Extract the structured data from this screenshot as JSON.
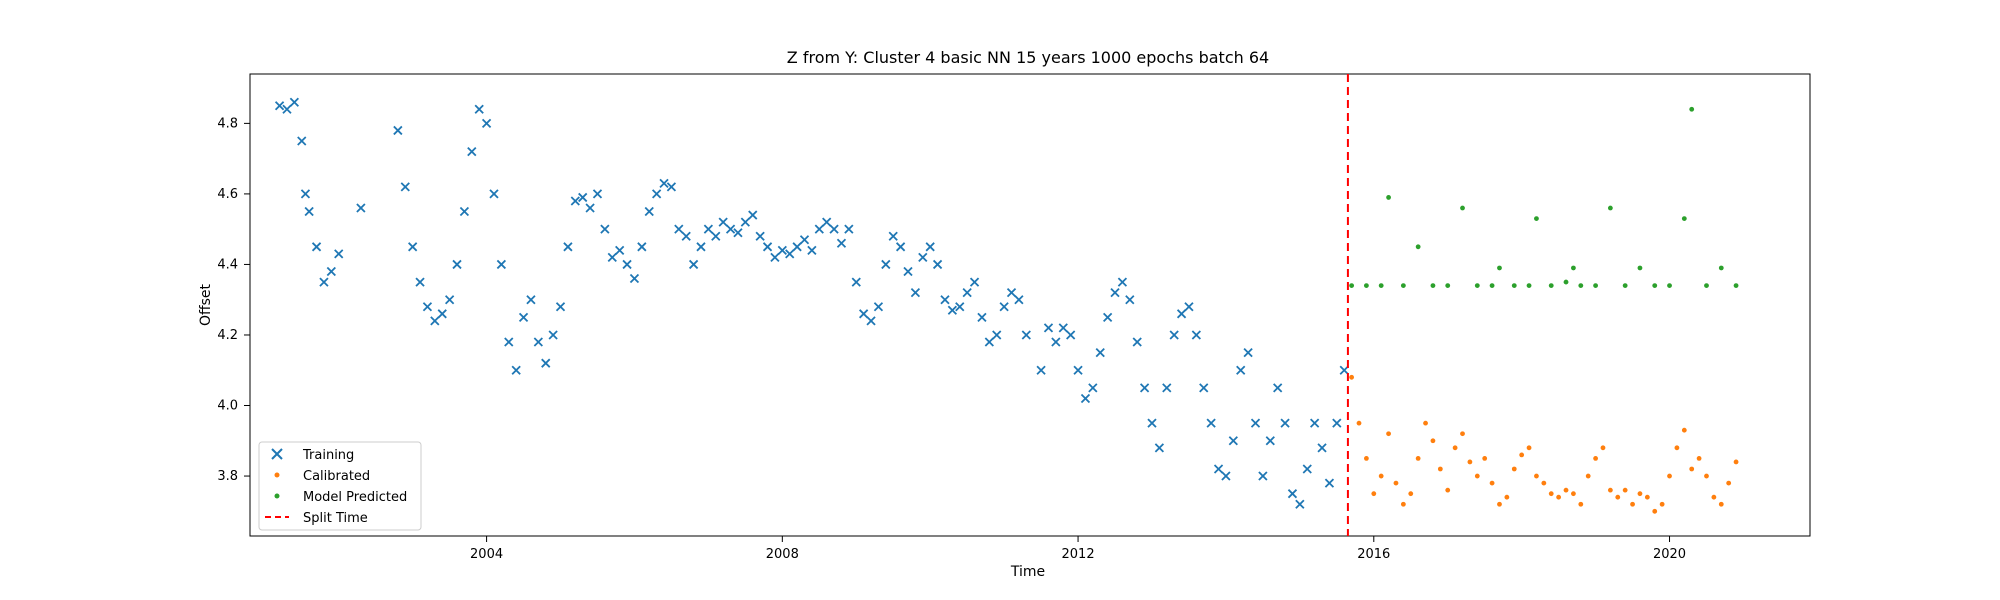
{
  "chart_data": {
    "type": "scatter",
    "title": "Z from Y: Cluster 4 basic NN 15 years 1000 epochs batch 64",
    "xlabel": "Time",
    "ylabel": "Offset",
    "xlim": [
      2000.8,
      2021.9
    ],
    "ylim": [
      3.63,
      4.94
    ],
    "x_ticks": [
      2004,
      2008,
      2012,
      2016,
      2020
    ],
    "x_tick_labels": [
      "2004",
      "2008",
      "2012",
      "2016",
      "2020"
    ],
    "y_ticks": [
      3.8,
      4.0,
      4.2,
      4.4,
      4.6,
      4.8
    ],
    "y_tick_labels": [
      "3.8",
      "4.0",
      "4.2",
      "4.4",
      "4.6",
      "4.8"
    ],
    "grid": false,
    "legend_position": "lower-left",
    "split_time": 2015.65,
    "series": [
      {
        "name": "Training",
        "marker": "x",
        "color": "#1f77b4",
        "points": [
          [
            2001.2,
            4.85
          ],
          [
            2001.3,
            4.84
          ],
          [
            2001.4,
            4.86
          ],
          [
            2001.5,
            4.75
          ],
          [
            2001.55,
            4.6
          ],
          [
            2001.6,
            4.55
          ],
          [
            2001.7,
            4.45
          ],
          [
            2001.8,
            4.35
          ],
          [
            2001.9,
            4.38
          ],
          [
            2002.0,
            4.43
          ],
          [
            2002.3,
            4.56
          ],
          [
            2002.8,
            4.78
          ],
          [
            2002.9,
            4.62
          ],
          [
            2003.0,
            4.45
          ],
          [
            2003.1,
            4.35
          ],
          [
            2003.2,
            4.28
          ],
          [
            2003.3,
            4.24
          ],
          [
            2003.4,
            4.26
          ],
          [
            2003.5,
            4.3
          ],
          [
            2003.6,
            4.4
          ],
          [
            2003.7,
            4.55
          ],
          [
            2003.8,
            4.72
          ],
          [
            2003.9,
            4.84
          ],
          [
            2004.0,
            4.8
          ],
          [
            2004.1,
            4.6
          ],
          [
            2004.2,
            4.4
          ],
          [
            2004.3,
            4.18
          ],
          [
            2004.4,
            4.1
          ],
          [
            2004.5,
            4.25
          ],
          [
            2004.6,
            4.3
          ],
          [
            2004.7,
            4.18
          ],
          [
            2004.8,
            4.12
          ],
          [
            2004.9,
            4.2
          ],
          [
            2005.0,
            4.28
          ],
          [
            2005.1,
            4.45
          ],
          [
            2005.2,
            4.58
          ],
          [
            2005.3,
            4.59
          ],
          [
            2005.4,
            4.56
          ],
          [
            2005.5,
            4.6
          ],
          [
            2005.6,
            4.5
          ],
          [
            2005.7,
            4.42
          ],
          [
            2005.8,
            4.44
          ],
          [
            2005.9,
            4.4
          ],
          [
            2006.0,
            4.36
          ],
          [
            2006.1,
            4.45
          ],
          [
            2006.2,
            4.55
          ],
          [
            2006.3,
            4.6
          ],
          [
            2006.4,
            4.63
          ],
          [
            2006.5,
            4.62
          ],
          [
            2006.6,
            4.5
          ],
          [
            2006.7,
            4.48
          ],
          [
            2006.8,
            4.4
          ],
          [
            2006.9,
            4.45
          ],
          [
            2007.0,
            4.5
          ],
          [
            2007.1,
            4.48
          ],
          [
            2007.2,
            4.52
          ],
          [
            2007.3,
            4.5
          ],
          [
            2007.4,
            4.49
          ],
          [
            2007.5,
            4.52
          ],
          [
            2007.6,
            4.54
          ],
          [
            2007.7,
            4.48
          ],
          [
            2007.8,
            4.45
          ],
          [
            2007.9,
            4.42
          ],
          [
            2008.0,
            4.44
          ],
          [
            2008.1,
            4.43
          ],
          [
            2008.2,
            4.45
          ],
          [
            2008.3,
            4.47
          ],
          [
            2008.4,
            4.44
          ],
          [
            2008.5,
            4.5
          ],
          [
            2008.6,
            4.52
          ],
          [
            2008.7,
            4.5
          ],
          [
            2008.8,
            4.46
          ],
          [
            2008.9,
            4.5
          ],
          [
            2009.0,
            4.35
          ],
          [
            2009.1,
            4.26
          ],
          [
            2009.2,
            4.24
          ],
          [
            2009.3,
            4.28
          ],
          [
            2009.4,
            4.4
          ],
          [
            2009.5,
            4.48
          ],
          [
            2009.6,
            4.45
          ],
          [
            2009.7,
            4.38
          ],
          [
            2009.8,
            4.32
          ],
          [
            2009.9,
            4.42
          ],
          [
            2010.0,
            4.45
          ],
          [
            2010.1,
            4.4
          ],
          [
            2010.2,
            4.3
          ],
          [
            2010.3,
            4.27
          ],
          [
            2010.4,
            4.28
          ],
          [
            2010.5,
            4.32
          ],
          [
            2010.6,
            4.35
          ],
          [
            2010.7,
            4.25
          ],
          [
            2010.8,
            4.18
          ],
          [
            2010.9,
            4.2
          ],
          [
            2011.0,
            4.28
          ],
          [
            2011.1,
            4.32
          ],
          [
            2011.2,
            4.3
          ],
          [
            2011.3,
            4.2
          ],
          [
            2011.5,
            4.1
          ],
          [
            2011.6,
            4.22
          ],
          [
            2011.7,
            4.18
          ],
          [
            2011.8,
            4.22
          ],
          [
            2011.9,
            4.2
          ],
          [
            2012.0,
            4.1
          ],
          [
            2012.1,
            4.02
          ],
          [
            2012.2,
            4.05
          ],
          [
            2012.3,
            4.15
          ],
          [
            2012.4,
            4.25
          ],
          [
            2012.5,
            4.32
          ],
          [
            2012.6,
            4.35
          ],
          [
            2012.7,
            4.3
          ],
          [
            2012.8,
            4.18
          ],
          [
            2012.9,
            4.05
          ],
          [
            2013.0,
            3.95
          ],
          [
            2013.1,
            3.88
          ],
          [
            2013.2,
            4.05
          ],
          [
            2013.3,
            4.2
          ],
          [
            2013.4,
            4.26
          ],
          [
            2013.5,
            4.28
          ],
          [
            2013.6,
            4.2
          ],
          [
            2013.7,
            4.05
          ],
          [
            2013.8,
            3.95
          ],
          [
            2013.9,
            3.82
          ],
          [
            2014.0,
            3.8
          ],
          [
            2014.1,
            3.9
          ],
          [
            2014.2,
            4.1
          ],
          [
            2014.3,
            4.15
          ],
          [
            2014.4,
            3.95
          ],
          [
            2014.5,
            3.8
          ],
          [
            2014.6,
            3.9
          ],
          [
            2014.7,
            4.05
          ],
          [
            2014.8,
            3.95
          ],
          [
            2014.9,
            3.75
          ],
          [
            2015.0,
            3.72
          ],
          [
            2015.1,
            3.82
          ],
          [
            2015.2,
            3.95
          ],
          [
            2015.3,
            3.88
          ],
          [
            2015.4,
            3.78
          ],
          [
            2015.5,
            3.95
          ],
          [
            2015.6,
            4.1
          ]
        ]
      },
      {
        "name": "Calibrated",
        "marker": "dot",
        "color": "#ff7f0e",
        "points": [
          [
            2015.7,
            4.08
          ],
          [
            2015.8,
            3.95
          ],
          [
            2015.9,
            3.85
          ],
          [
            2016.0,
            3.75
          ],
          [
            2016.1,
            3.8
          ],
          [
            2016.2,
            3.92
          ],
          [
            2016.3,
            3.78
          ],
          [
            2016.4,
            3.72
          ],
          [
            2016.5,
            3.75
          ],
          [
            2016.6,
            3.85
          ],
          [
            2016.7,
            3.95
          ],
          [
            2016.8,
            3.9
          ],
          [
            2016.9,
            3.82
          ],
          [
            2017.0,
            3.76
          ],
          [
            2017.1,
            3.88
          ],
          [
            2017.2,
            3.92
          ],
          [
            2017.3,
            3.84
          ],
          [
            2017.4,
            3.8
          ],
          [
            2017.5,
            3.85
          ],
          [
            2017.6,
            3.78
          ],
          [
            2017.7,
            3.72
          ],
          [
            2017.8,
            3.74
          ],
          [
            2017.9,
            3.82
          ],
          [
            2018.0,
            3.86
          ],
          [
            2018.1,
            3.88
          ],
          [
            2018.2,
            3.8
          ],
          [
            2018.3,
            3.78
          ],
          [
            2018.4,
            3.75
          ],
          [
            2018.5,
            3.74
          ],
          [
            2018.6,
            3.76
          ],
          [
            2018.7,
            3.75
          ],
          [
            2018.8,
            3.72
          ],
          [
            2018.9,
            3.8
          ],
          [
            2019.0,
            3.85
          ],
          [
            2019.1,
            3.88
          ],
          [
            2019.2,
            3.76
          ],
          [
            2019.3,
            3.74
          ],
          [
            2019.4,
            3.76
          ],
          [
            2019.5,
            3.72
          ],
          [
            2019.6,
            3.75
          ],
          [
            2019.7,
            3.74
          ],
          [
            2019.8,
            3.7
          ],
          [
            2019.9,
            3.72
          ],
          [
            2020.0,
            3.8
          ],
          [
            2020.1,
            3.88
          ],
          [
            2020.2,
            3.93
          ],
          [
            2020.3,
            3.82
          ],
          [
            2020.4,
            3.85
          ],
          [
            2020.5,
            3.8
          ],
          [
            2020.6,
            3.74
          ],
          [
            2020.7,
            3.72
          ],
          [
            2020.8,
            3.78
          ],
          [
            2020.9,
            3.84
          ]
        ]
      },
      {
        "name": "Model Predicted",
        "marker": "dot",
        "color": "#2ca02c",
        "points": [
          [
            2015.7,
            4.34
          ],
          [
            2015.9,
            4.34
          ],
          [
            2016.1,
            4.34
          ],
          [
            2016.2,
            4.59
          ],
          [
            2016.4,
            4.34
          ],
          [
            2016.6,
            4.45
          ],
          [
            2016.8,
            4.34
          ],
          [
            2017.0,
            4.34
          ],
          [
            2017.2,
            4.56
          ],
          [
            2017.4,
            4.34
          ],
          [
            2017.6,
            4.34
          ],
          [
            2017.7,
            4.39
          ],
          [
            2017.9,
            4.34
          ],
          [
            2018.1,
            4.34
          ],
          [
            2018.2,
            4.53
          ],
          [
            2018.4,
            4.34
          ],
          [
            2018.6,
            4.35
          ],
          [
            2018.7,
            4.39
          ],
          [
            2018.8,
            4.34
          ],
          [
            2019.0,
            4.34
          ],
          [
            2019.2,
            4.56
          ],
          [
            2019.4,
            4.34
          ],
          [
            2019.6,
            4.39
          ],
          [
            2019.8,
            4.34
          ],
          [
            2020.0,
            4.34
          ],
          [
            2020.2,
            4.53
          ],
          [
            2020.3,
            4.84
          ],
          [
            2020.5,
            4.34
          ],
          [
            2020.7,
            4.39
          ],
          [
            2020.9,
            4.34
          ]
        ]
      },
      {
        "name": "Split Time",
        "marker": "dashed-line",
        "color": "#ff0000"
      }
    ]
  }
}
